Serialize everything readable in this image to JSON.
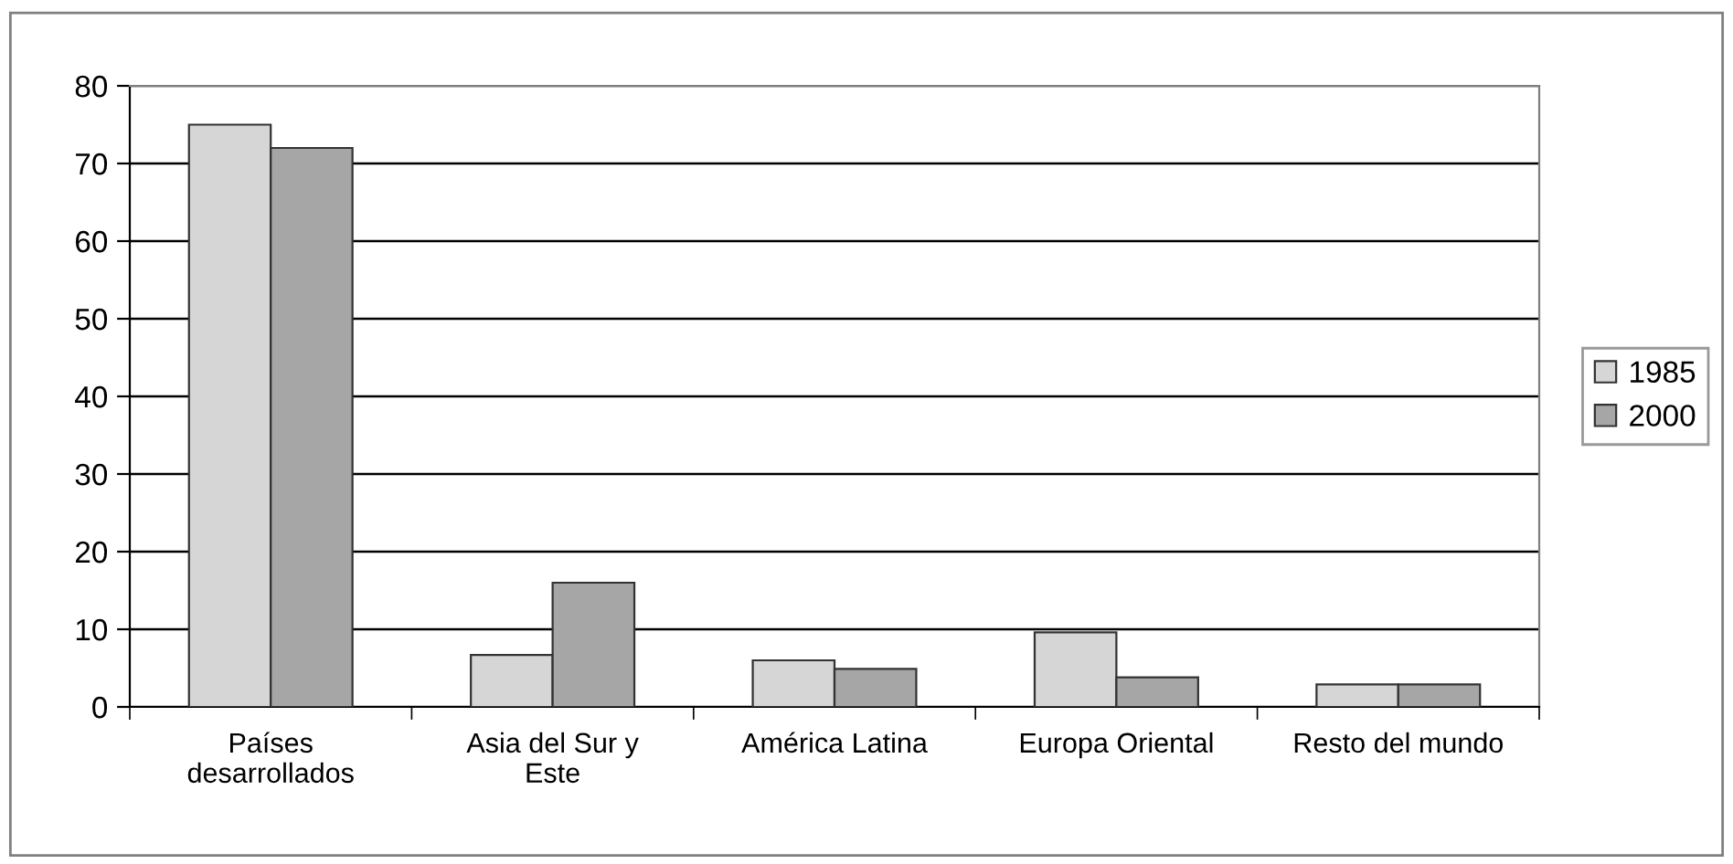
{
  "chart_data": {
    "type": "bar",
    "categories": [
      "Países\ndesarrollados",
      "Asia del Sur y\nEste",
      "América Latina",
      "Europa Oriental",
      "Resto del mundo"
    ],
    "series": [
      {
        "name": "1985",
        "color": "#d6d6d6",
        "values": [
          75,
          6.7,
          6,
          9.6,
          2.9
        ]
      },
      {
        "name": "2000",
        "color": "#a6a6a6",
        "values": [
          72,
          16,
          4.9,
          3.8,
          2.9
        ]
      }
    ],
    "ylim": [
      0,
      80
    ],
    "yticks": [
      0,
      10,
      20,
      30,
      40,
      50,
      60,
      70,
      80
    ],
    "grid": "y",
    "legend": "right"
  }
}
